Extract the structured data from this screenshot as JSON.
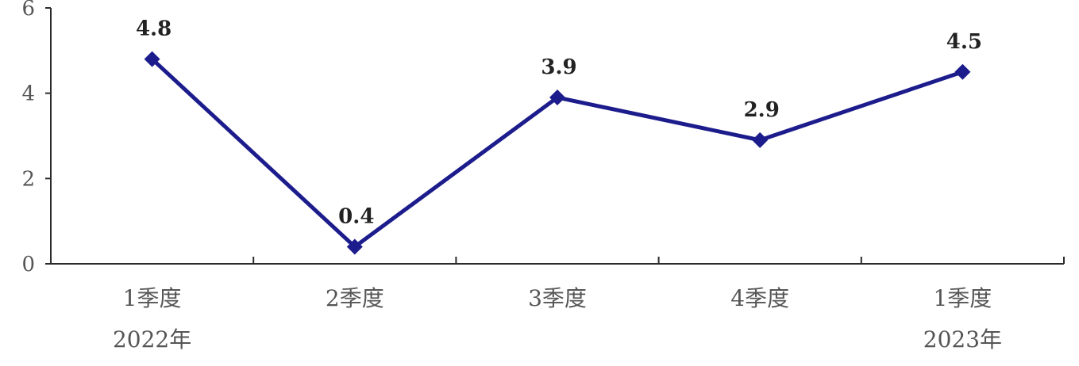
{
  "chart_data": {
    "type": "line",
    "title": "",
    "xlabel": "",
    "ylabel": "",
    "categories": [
      "1季度",
      "2季度",
      "3季度",
      "4季度",
      "1季度"
    ],
    "year_labels": [
      "2022年",
      "",
      "",
      "",
      "2023年"
    ],
    "series": [
      {
        "values": [
          4.8,
          0.4,
          3.9,
          2.9,
          4.5
        ],
        "data_labels": [
          "4.8",
          "0.4",
          "3.9",
          "2.9",
          "4.5"
        ],
        "color": "#1c1c8c",
        "marker": "diamond"
      }
    ],
    "ylim": [
      0,
      6
    ],
    "yticks": [
      0,
      2,
      4,
      6
    ],
    "ytick_labels": [
      "0",
      "2",
      "4",
      "6"
    ],
    "grid": false,
    "legend": "none"
  }
}
